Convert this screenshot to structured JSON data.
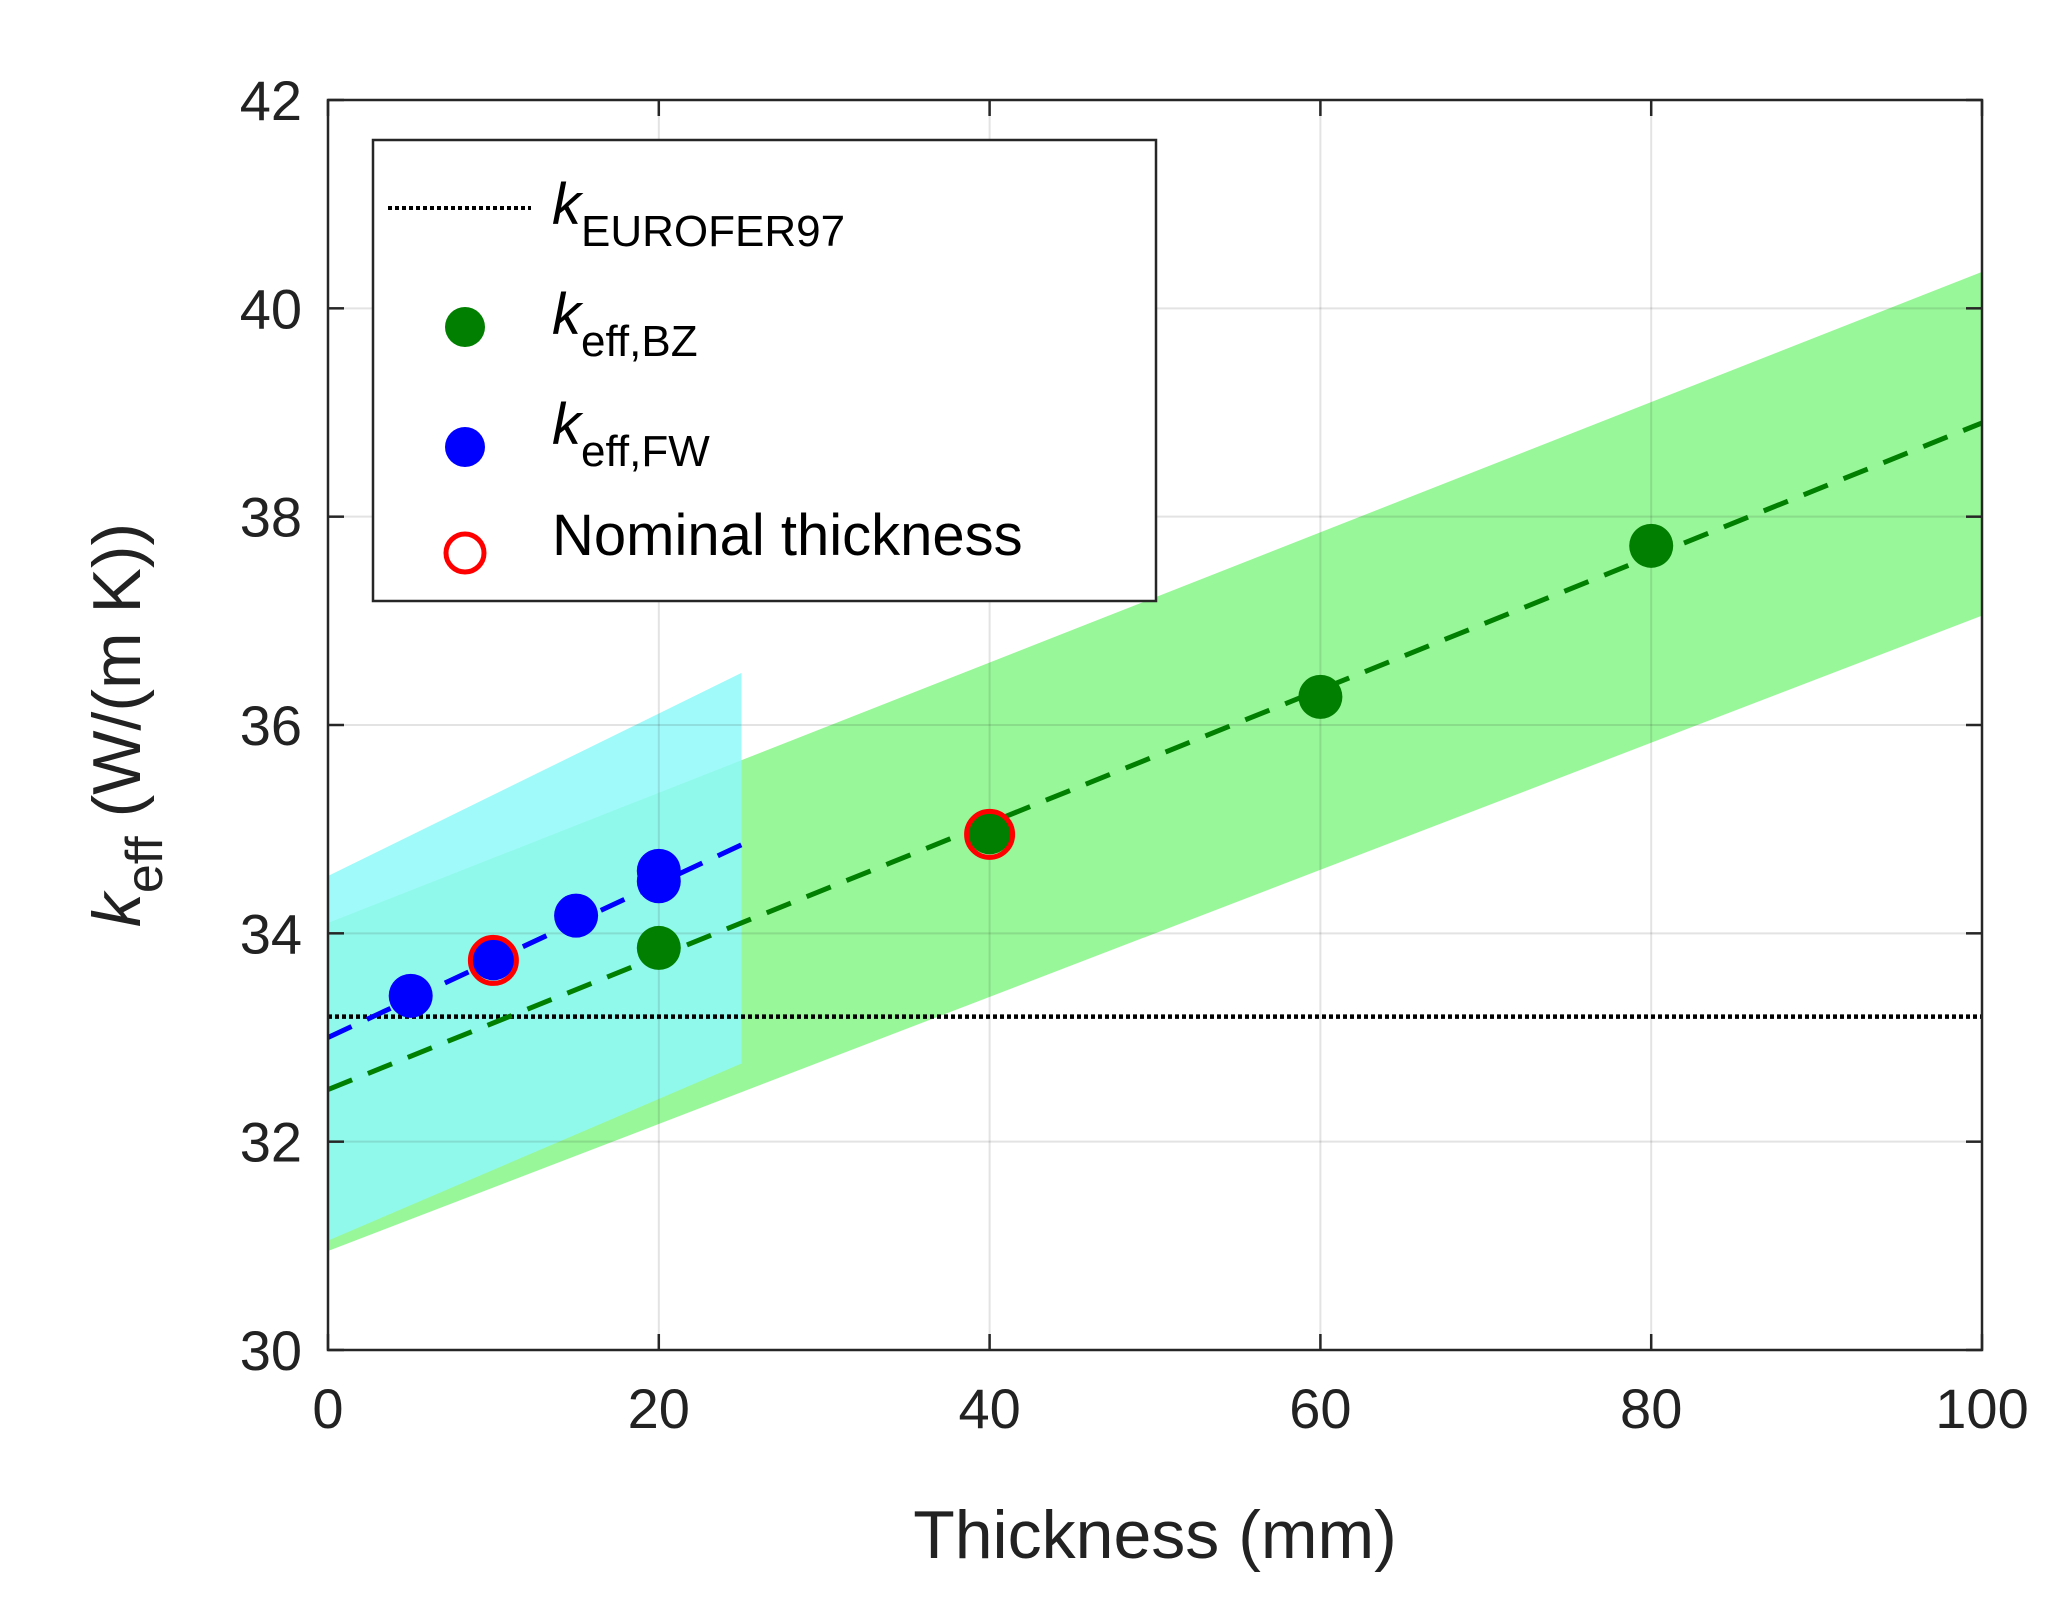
{
  "chart_data": {
    "type": "scatter",
    "title": "",
    "xlabel": "Thickness (mm)",
    "ylabel": {
      "main": "k",
      "sub": "eff",
      "unit": " (W/(m K))"
    },
    "xlim": [
      0,
      100
    ],
    "ylim": [
      30,
      42
    ],
    "xticks": [
      0,
      20,
      40,
      60,
      80,
      100
    ],
    "yticks": [
      30,
      32,
      34,
      36,
      38,
      40,
      42
    ],
    "xtick_labels": [
      "0",
      "20",
      "40",
      "60",
      "80",
      "100"
    ],
    "ytick_labels": [
      "30",
      "32",
      "34",
      "36",
      "38",
      "40",
      "42"
    ],
    "grid": true,
    "legend_position": "top-left",
    "reference_line": {
      "name": "k_EUROFER97",
      "value": 33.2,
      "color": "#000000"
    },
    "bands": [
      {
        "name": "k_eff,BZ uncertainty",
        "color": "#98f798",
        "x": [
          0,
          100
        ],
        "lower": [
          30.95,
          37.05
        ],
        "upper": [
          34.1,
          40.35
        ]
      },
      {
        "name": "k_eff,FW uncertainty",
        "color": "#8ff9f9",
        "x": [
          0,
          25
        ],
        "lower": [
          31.05,
          32.75
        ],
        "upper": [
          34.55,
          36.5
        ]
      }
    ],
    "series": [
      {
        "name": "k_eff,BZ",
        "color": "#007f00",
        "x": [
          20,
          40,
          60,
          80
        ],
        "y": [
          33.86,
          34.97,
          36.27,
          37.72
        ],
        "fit_x": [
          0,
          100
        ],
        "fit_y": [
          32.5,
          38.9
        ]
      },
      {
        "name": "k_eff,FW",
        "color": "#0000ff",
        "x": [
          5,
          10,
          15,
          20,
          20
        ],
        "y": [
          33.4,
          33.76,
          34.17,
          34.5,
          34.6
        ],
        "fit_x": [
          0,
          25
        ],
        "fit_y": [
          33.0,
          34.85
        ]
      }
    ],
    "nominal_thickness": {
      "name": "Nominal thickness",
      "color": "#ff0000",
      "points": [
        {
          "x": 10,
          "y": 33.74
        },
        {
          "x": 40,
          "y": 34.95
        }
      ]
    },
    "legend": [
      {
        "key": "ref",
        "main": "k",
        "sub": "EUROFER97"
      },
      {
        "key": "bz",
        "main": "k",
        "sub": "eff,BZ"
      },
      {
        "key": "fw",
        "main": "k",
        "sub": "eff,FW"
      },
      {
        "key": "nominal",
        "main": "Nominal thickness",
        "sub": ""
      }
    ]
  }
}
